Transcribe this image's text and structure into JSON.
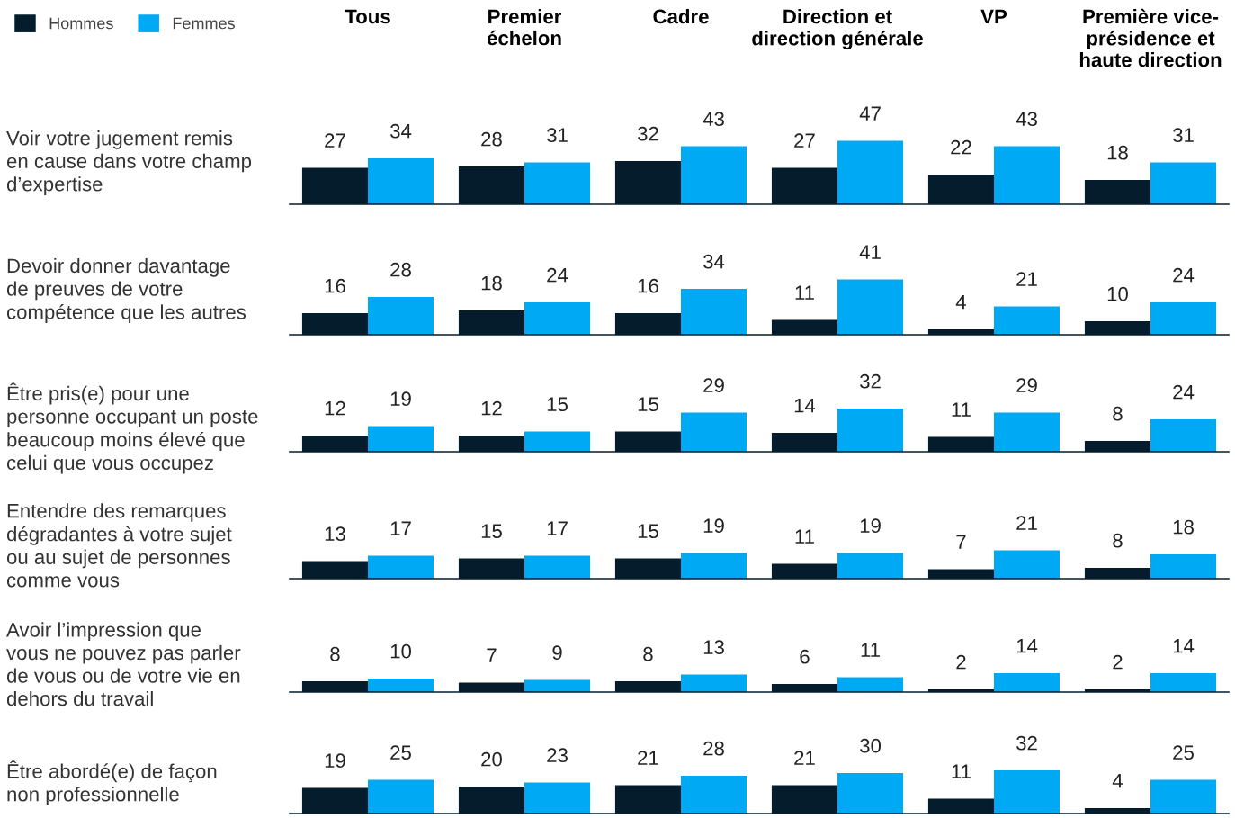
{
  "chart_data": [
    {
      "type": "bar",
      "title": "Voir votre jugement remis\nen cause dans votre champ\nd’expertise",
      "categories": [
        "Tous",
        "Premier\néchelon",
        "Cadre",
        "Direction et\ndirection générale",
        "VP",
        "Première vice-\nprésidence et\nhaute direction"
      ],
      "data_labels": true,
      "legend": "top left",
      "series": [
        {
          "name": "Hommes",
          "color": "#051c2c",
          "values": [
            27,
            28,
            32,
            27,
            22,
            18
          ]
        },
        {
          "name": "Femmes",
          "color": "#00a9f4",
          "values": [
            34,
            31,
            43,
            47,
            43,
            31
          ]
        }
      ]
    },
    {
      "type": "bar",
      "title": "Devoir donner davantage\nde preuves de votre\ncompétence que les autres",
      "categories": [
        null,
        null,
        null,
        null,
        null,
        null
      ],
      "data_labels": true,
      "series": [
        {
          "color": "#051c2c",
          "values": [
            16,
            18,
            16,
            11,
            4,
            10
          ]
        },
        {
          "color": "#00a9f4",
          "values": [
            28,
            24,
            34,
            41,
            21,
            24
          ]
        }
      ]
    },
    {
      "type": "bar",
      "title": "Être pris(e) pour une\npersonne occupant un poste\nbeaucoup moins élevé que\ncelui que vous occupez",
      "categories": [
        null,
        null,
        null,
        null,
        null,
        null
      ],
      "data_labels": true,
      "series": [
        {
          "color": "#051c2c",
          "values": [
            12,
            12,
            15,
            14,
            11,
            8
          ]
        },
        {
          "color": "#00a9f4",
          "values": [
            19,
            15,
            29,
            32,
            29,
            24
          ]
        }
      ]
    },
    {
      "type": "bar",
      "title": "Entendre des remarques\ndégradantes à votre sujet\nou au sujet de personnes\ncomme vous",
      "categories": [
        null,
        null,
        null,
        null,
        null,
        null
      ],
      "data_labels": true,
      "series": [
        {
          "color": "#051c2c",
          "values": [
            13,
            15,
            15,
            11,
            7,
            8
          ]
        },
        {
          "color": "#00a9f4",
          "values": [
            17,
            17,
            19,
            19,
            21,
            18
          ]
        }
      ]
    },
    {
      "type": "bar",
      "title": "Avoir l’impression que\nvous ne pouvez pas parler\nde vous ou de votre vie en\ndehors du travail",
      "categories": [
        null,
        null,
        null,
        null,
        null,
        null
      ],
      "data_labels": true,
      "series": [
        {
          "color": "#051c2c",
          "values": [
            8,
            7,
            8,
            6,
            2,
            2
          ]
        },
        {
          "color": "#00a9f4",
          "values": [
            10,
            9,
            13,
            11,
            14,
            14
          ]
        }
      ]
    },
    {
      "type": "bar",
      "title": "Être abordé(e) de façon\nnon professionnelle",
      "categories": [
        null,
        null,
        null,
        null,
        null,
        null
      ],
      "data_labels": true,
      "series": [
        {
          "color": "#051c2c",
          "values": [
            19,
            20,
            21,
            21,
            11,
            4
          ]
        },
        {
          "color": "#00a9f4",
          "values": [
            25,
            23,
            28,
            30,
            32,
            25
          ]
        }
      ]
    }
  ]
}
